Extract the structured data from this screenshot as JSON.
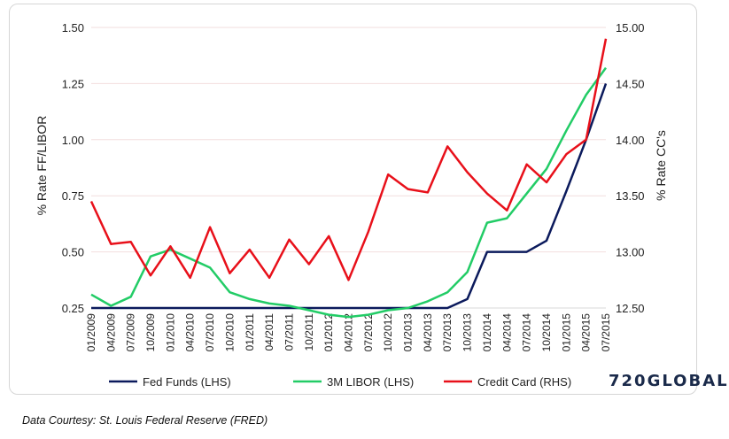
{
  "chart_data": {
    "type": "line",
    "x": [
      "01/2009",
      "04/2009",
      "07/2009",
      "10/2009",
      "01/2010",
      "04/2010",
      "07/2010",
      "10/2010",
      "01/2011",
      "04/2011",
      "07/2011",
      "10/2011",
      "01/2012",
      "04/2012",
      "07/2012",
      "10/2012",
      "01/2013",
      "04/2013",
      "07/2013",
      "10/2013",
      "01/2014",
      "04/2014",
      "07/2014",
      "10/2014",
      "01/2015",
      "04/2015",
      "07/2015"
    ],
    "series": [
      {
        "name": "Fed Funds (LHS)",
        "axis": "left",
        "color": "#0b1a5c",
        "values": [
          0.25,
          0.25,
          0.25,
          0.25,
          0.25,
          0.25,
          0.25,
          0.25,
          0.25,
          0.25,
          0.25,
          0.25,
          0.25,
          0.25,
          0.25,
          0.25,
          0.25,
          0.25,
          0.25,
          0.29,
          0.5,
          0.5,
          0.5,
          0.55,
          0.77,
          1.0,
          1.25
        ]
      },
      {
        "name": "3M LIBOR (LHS)",
        "axis": "left",
        "color": "#22cc66",
        "values": [
          0.31,
          0.26,
          0.3,
          0.48,
          0.51,
          0.47,
          0.43,
          0.32,
          0.29,
          0.27,
          0.26,
          0.24,
          0.22,
          0.21,
          0.22,
          0.24,
          0.25,
          0.28,
          0.32,
          0.41,
          0.63,
          0.65,
          0.76,
          0.87,
          1.04,
          1.2,
          1.32
        ]
      },
      {
        "name": "Credit Card (RHS)",
        "axis": "right",
        "color": "#e8101a",
        "values": [
          13.45,
          13.07,
          13.09,
          12.79,
          13.05,
          12.77,
          13.22,
          12.81,
          13.02,
          12.77,
          13.11,
          12.89,
          13.14,
          12.75,
          13.18,
          13.69,
          13.56,
          13.53,
          13.94,
          13.71,
          13.52,
          13.37,
          13.78,
          13.62,
          13.87,
          14.0,
          14.9
        ]
      }
    ],
    "y_left": {
      "label": "% Rate FF/LIBOR",
      "min": 0.25,
      "max": 1.5,
      "ticks": [
        "0.25",
        "0.50",
        "0.75",
        "1.00",
        "1.25",
        "1.50"
      ]
    },
    "y_right": {
      "label": "% Rate CC's",
      "min": 12.5,
      "max": 15.0,
      "ticks": [
        "12.50",
        "13.00",
        "13.50",
        "14.00",
        "14.50",
        "15.00"
      ]
    },
    "grid": "horizontal",
    "legend_position": "bottom"
  },
  "brand": "720GLOBAL",
  "source": "Data Courtesy: St. Louis Federal Reserve (FRED)"
}
